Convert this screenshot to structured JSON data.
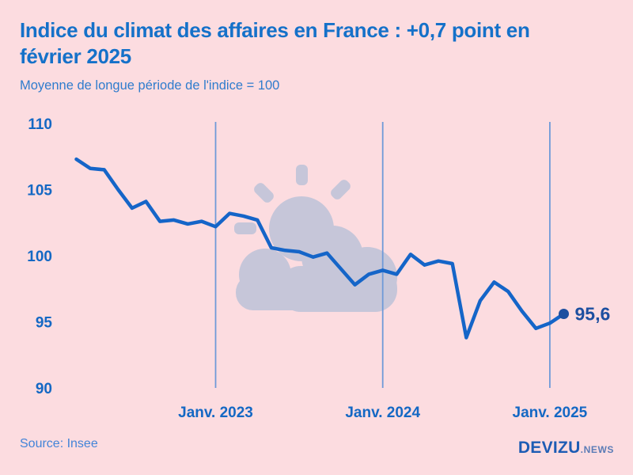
{
  "header": {
    "title": "Indice du climat des affaires en France : +0,7 point en\nfévrier 2025",
    "subtitle": "Moyenne de longue période de l'indice = 100"
  },
  "chart_data": {
    "type": "line",
    "title": "Indice du climat des affaires en France : +0,7 point en février 2025",
    "subtitle": "Moyenne de longue période de l'indice = 100",
    "x": [
      "2022-03",
      "2022-04",
      "2022-05",
      "2022-06",
      "2022-07",
      "2022-08",
      "2022-09",
      "2022-10",
      "2022-11",
      "2022-12",
      "2023-01",
      "2023-02",
      "2023-03",
      "2023-04",
      "2023-05",
      "2023-06",
      "2023-07",
      "2023-08",
      "2023-09",
      "2023-10",
      "2023-11",
      "2023-12",
      "2024-01",
      "2024-02",
      "2024-03",
      "2024-04",
      "2024-05",
      "2024-06",
      "2024-07",
      "2024-08",
      "2024-09",
      "2024-10",
      "2024-11",
      "2024-12",
      "2025-01",
      "2025-02"
    ],
    "series": [
      {
        "name": "Indice du climat des affaires",
        "values": [
          107.3,
          106.6,
          106.5,
          105.0,
          103.6,
          104.1,
          102.6,
          102.7,
          102.4,
          102.6,
          102.2,
          103.2,
          103.0,
          102.7,
          100.6,
          100.4,
          100.3,
          99.9,
          100.2,
          99.0,
          97.8,
          98.6,
          98.9,
          98.6,
          100.1,
          99.3,
          99.6,
          99.4,
          93.8,
          96.6,
          98.0,
          97.3,
          95.8,
          94.5,
          94.9,
          95.6
        ]
      }
    ],
    "yticks": [
      110,
      105,
      100,
      95,
      90
    ],
    "ylim": [
      90,
      110
    ],
    "xlabel": "",
    "ylabel": "",
    "grid": "vertical january gridlines only",
    "legend": "none",
    "x_gridlines": [
      {
        "month": "2023-01",
        "label": "Janv. 2023"
      },
      {
        "month": "2024-01",
        "label": "Janv. 2024"
      },
      {
        "month": "2025-01",
        "label": "Janv. 2025"
      }
    ],
    "end_point": {
      "month": "2025-02",
      "value": 95.6,
      "label": "95,6"
    }
  },
  "footer": {
    "source": "Source: Insee",
    "brand": "DEVIZU",
    "brand_suffix": ".NEWS"
  },
  "icons": {
    "watermark": "sun-behind-cloud-icon"
  },
  "colors": {
    "background": "#fcdce0",
    "title": "#1571c9",
    "subtitle": "#2f7ccd",
    "axis_label": "#1468c4",
    "line": "#1565c8",
    "gridline": "#6f9ad8",
    "end_label": "#1d4fa0",
    "watermark": "#c6c6d9",
    "source": "#4384d8",
    "brand": "#1d5cb4",
    "brand_suffix": "#5b7cb6"
  }
}
